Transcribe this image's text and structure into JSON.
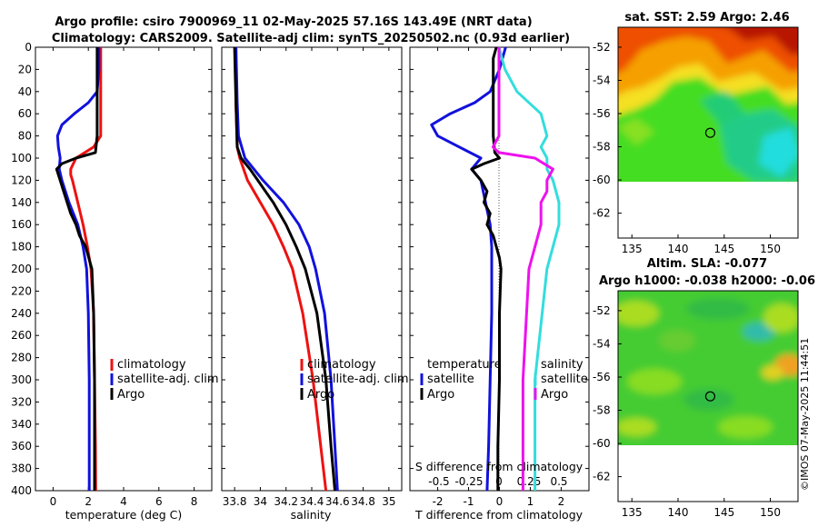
{
  "figure": {
    "title_line1": "Argo profile: csiro 7900969_11 02-May-2025 57.16S 143.49E (NRT data)",
    "title_line2": "Climatology: CARS2009. Satellite-adj clim: synTS_20250502.nc (0.93d earlier)",
    "watermark": "©IMOS 07-May-2025 11:44:51"
  },
  "colors": {
    "climatology": "#ee1111",
    "satellite": "#1111dd",
    "argo": "#000000",
    "salinity_satellite": "#33dddd",
    "salinity_argo": "#ee11ee"
  },
  "chart_data": [
    {
      "type": "line",
      "name": "temperature-profile",
      "xlabel": "temperature (deg C)",
      "ylabel": "",
      "xlim": [
        -1,
        9
      ],
      "ylim": [
        400,
        0
      ],
      "xticks": [
        0,
        2,
        4,
        6,
        8
      ],
      "yticks": [
        0,
        20,
        40,
        60,
        80,
        100,
        120,
        140,
        160,
        180,
        200,
        220,
        240,
        260,
        280,
        300,
        320,
        340,
        360,
        380,
        400
      ],
      "legend": [
        "climatology",
        "satellite-adj. clim",
        "Argo"
      ],
      "series": [
        {
          "name": "climatology",
          "depth": [
            0,
            20,
            40,
            60,
            80,
            90,
            100,
            110,
            115,
            120,
            140,
            160,
            180,
            200,
            240,
            300,
            360,
            400
          ],
          "values": [
            2.7,
            2.7,
            2.7,
            2.7,
            2.7,
            2.3,
            1.3,
            1.0,
            1.0,
            1.1,
            1.4,
            1.7,
            1.95,
            2.15,
            2.3,
            2.35,
            2.4,
            2.42
          ]
        },
        {
          "name": "satellite-adj. clim",
          "depth": [
            0,
            20,
            40,
            50,
            60,
            70,
            80,
            90,
            100,
            110,
            120,
            140,
            160,
            180,
            200,
            240,
            300,
            360,
            400
          ],
          "values": [
            2.6,
            2.6,
            2.5,
            2.0,
            1.2,
            0.5,
            0.25,
            0.3,
            0.4,
            0.35,
            0.5,
            0.9,
            1.4,
            1.7,
            1.9,
            2.0,
            2.05,
            2.05,
            2.05
          ]
        },
        {
          "name": "Argo",
          "depth": [
            0,
            20,
            40,
            60,
            80,
            95,
            100,
            105,
            110,
            120,
            130,
            140,
            150,
            160,
            170,
            180,
            200,
            240,
            300,
            360,
            400
          ],
          "values": [
            2.5,
            2.5,
            2.5,
            2.5,
            2.5,
            2.4,
            1.3,
            0.5,
            0.2,
            0.4,
            0.6,
            0.8,
            1.0,
            1.3,
            1.5,
            1.85,
            2.2,
            2.3,
            2.35,
            2.35,
            2.35
          ]
        }
      ]
    },
    {
      "type": "line",
      "name": "salinity-profile",
      "xlabel": "salinity",
      "xlim": [
        33.7,
        35.1
      ],
      "ylim": [
        400,
        0
      ],
      "xticks": [
        33.8,
        34,
        34.2,
        34.4,
        34.6,
        34.8,
        35
      ],
      "xticklabels": [
        "33.8",
        "34",
        "34.2",
        "34.4",
        "34.6",
        "34.8",
        "35"
      ],
      "legend": [
        "climatology",
        "satellite-adj. clim",
        "Argo"
      ],
      "series": [
        {
          "name": "climatology",
          "depth": [
            0,
            50,
            90,
            100,
            120,
            140,
            160,
            180,
            200,
            240,
            300,
            360,
            400
          ],
          "values": [
            33.81,
            33.81,
            33.82,
            33.84,
            33.9,
            34.0,
            34.1,
            34.18,
            34.25,
            34.33,
            34.41,
            34.47,
            34.51
          ]
        },
        {
          "name": "satellite-adj. clim",
          "depth": [
            0,
            50,
            80,
            100,
            110,
            120,
            140,
            160,
            180,
            200,
            240,
            300,
            360,
            400
          ],
          "values": [
            33.81,
            33.82,
            33.83,
            33.88,
            33.95,
            34.02,
            34.18,
            34.3,
            34.38,
            34.43,
            34.5,
            34.55,
            34.58,
            34.6
          ]
        },
        {
          "name": "Argo",
          "depth": [
            0,
            50,
            90,
            100,
            110,
            120,
            140,
            160,
            180,
            200,
            240,
            300,
            360,
            400
          ],
          "values": [
            33.8,
            33.81,
            33.82,
            33.85,
            33.92,
            33.98,
            34.1,
            34.2,
            34.28,
            34.35,
            34.44,
            34.51,
            34.55,
            34.58
          ]
        }
      ]
    },
    {
      "type": "line",
      "name": "difference-profile",
      "xlabel": "T difference from climatology",
      "top_axis_label": "S difference from climatology",
      "xlim": [
        -2.9,
        2.9
      ],
      "ylim": [
        400,
        0
      ],
      "xticks": [
        -2,
        -1,
        0,
        1,
        2
      ],
      "xticklabels": [
        "-2",
        "-1",
        "0",
        "1",
        "2"
      ],
      "s_ticklabels": [
        "-0.5",
        "-0.25",
        "0",
        "0.25",
        "0.5"
      ],
      "legend_temperature_header": "temperature",
      "legend_salinity_header": "salinity",
      "legend_temperature": [
        "satellite",
        "Argo"
      ],
      "legend_salinity": [
        "satellite",
        "Argo"
      ],
      "series": [
        {
          "name": "temperature satellite",
          "depth": [
            0,
            20,
            40,
            50,
            60,
            70,
            80,
            90,
            100,
            110,
            120,
            140,
            160,
            180,
            200,
            240,
            300,
            360,
            400
          ],
          "values": [
            0.2,
            0.0,
            -0.3,
            -0.8,
            -1.6,
            -2.2,
            -2.0,
            -1.3,
            -0.6,
            -0.9,
            -0.6,
            -0.45,
            -0.3,
            -0.25,
            -0.25,
            -0.25,
            -0.3,
            -0.35,
            -0.4
          ]
        },
        {
          "name": "temperature Argo",
          "depth": [
            0,
            10,
            20,
            40,
            60,
            80,
            95,
            100,
            105,
            110,
            120,
            130,
            140,
            150,
            160,
            170,
            180,
            190,
            200,
            240,
            300,
            360,
            400
          ],
          "values": [
            -0.1,
            -0.2,
            -0.2,
            -0.2,
            -0.2,
            -0.2,
            -0.15,
            0.0,
            -0.5,
            -0.9,
            -0.6,
            -0.4,
            -0.5,
            -0.3,
            -0.4,
            -0.2,
            -0.1,
            0.0,
            0.05,
            0.0,
            0.0,
            -0.05,
            -0.05
          ]
        },
        {
          "name": "salinity satellite",
          "depth": [
            0,
            20,
            40,
            60,
            80,
            90,
            100,
            110,
            120,
            140,
            160,
            200,
            300,
            400
          ],
          "values": [
            0.0,
            0.05,
            0.15,
            0.35,
            0.4,
            0.35,
            0.4,
            0.4,
            0.45,
            0.5,
            0.5,
            0.4,
            0.3,
            0.3
          ]
        },
        {
          "name": "salinity Argo",
          "depth": [
            0,
            20,
            40,
            60,
            80,
            90,
            95,
            100,
            110,
            120,
            130,
            140,
            160,
            200,
            300,
            400
          ],
          "values": [
            0.0,
            0.0,
            0.0,
            0.0,
            0.0,
            -0.05,
            0.0,
            0.3,
            0.45,
            0.4,
            0.4,
            0.35,
            0.35,
            0.25,
            0.2,
            0.2
          ]
        }
      ]
    },
    {
      "type": "heatmap",
      "name": "sst-map",
      "title": "sat. SST: 2.59 Argo: 2.46",
      "xlim": [
        133.5,
        153
      ],
      "ylim": [
        -63.5,
        -50.8
      ],
      "xticks": [
        135,
        140,
        145,
        150
      ],
      "yticks": [
        -52,
        -54,
        -56,
        -58,
        -60,
        -62
      ],
      "marker": [
        143.49,
        -57.16
      ]
    },
    {
      "type": "heatmap",
      "name": "sla-map",
      "title_line1": "Altim. SLA: -0.077",
      "title_line2": "Argo h1000: -0.038 h2000: -0.06",
      "xlim": [
        133.5,
        153
      ],
      "ylim": [
        -63.5,
        -50.8
      ],
      "xticks": [
        135,
        140,
        145,
        150
      ],
      "yticks": [
        -52,
        -54,
        -56,
        -58,
        -60,
        -62
      ],
      "marker": [
        143.49,
        -57.16
      ]
    }
  ]
}
